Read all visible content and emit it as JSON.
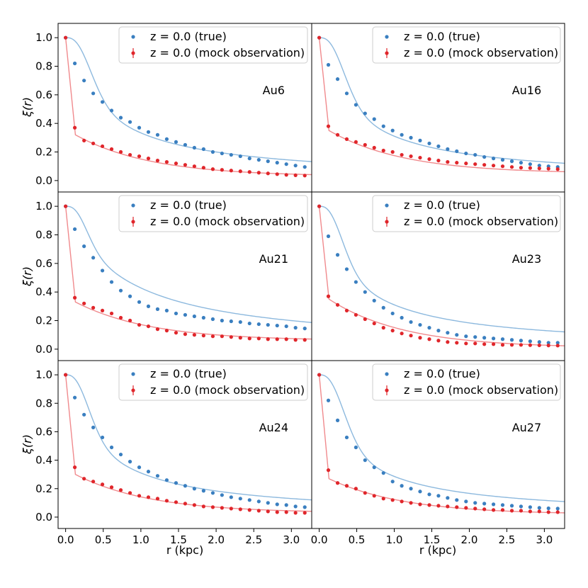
{
  "chart_data": {
    "type": "scatter",
    "layout": "3x2 grid, shared axes",
    "xlabel": "r (kpc)",
    "ylabel": "ξ(r)",
    "xlim": [
      -0.1,
      3.27
    ],
    "ylim": [
      -0.08,
      1.1
    ],
    "xticks": [
      0.0,
      0.5,
      1.0,
      1.5,
      2.0,
      2.5,
      3.0
    ],
    "xtick_labels": [
      "0.0",
      "0.5",
      "1.0",
      "1.5",
      "2.0",
      "2.5",
      "3.0"
    ],
    "yticks": [
      0.0,
      0.2,
      0.4,
      0.6,
      0.8,
      1.0
    ],
    "ytick_labels": [
      "0.0",
      "0.2",
      "0.4",
      "0.6",
      "0.8",
      "1.0"
    ],
    "legend_position": "top-right",
    "legend": [
      {
        "label": "z = 0.0 (true)",
        "color": "#3a7fc0",
        "marker": "dot"
      },
      {
        "label": "z = 0.0 (mock observation)",
        "color": "#e0262b",
        "marker": "dot-errorbar"
      }
    ],
    "colors": {
      "true_points": "#3a7fc0",
      "true_fit": "#8db9de",
      "mock_points": "#e0262b",
      "mock_fit": "#f08a8d"
    },
    "x": [
      0.0,
      0.122,
      0.245,
      0.367,
      0.489,
      0.611,
      0.733,
      0.856,
      0.978,
      1.1,
      1.222,
      1.344,
      1.467,
      1.589,
      1.711,
      1.833,
      1.956,
      2.078,
      2.2,
      2.322,
      2.444,
      2.567,
      2.689,
      2.811,
      2.933,
      3.055,
      3.178
    ],
    "panels": [
      {
        "name": "Au6",
        "true_fit": {
          "s": 0.25,
          "a": 0.5
        },
        "mock_fit": {
          "r0": 0.13,
          "v0": 0.32,
          "tail": 0.03
        },
        "true": [
          1.0,
          0.82,
          0.7,
          0.61,
          0.55,
          0.49,
          0.44,
          0.41,
          0.37,
          0.34,
          0.32,
          0.29,
          0.27,
          0.25,
          0.23,
          0.22,
          0.2,
          0.19,
          0.18,
          0.17,
          0.155,
          0.145,
          0.135,
          0.125,
          0.115,
          0.105,
          0.095
        ],
        "mock": [
          1.0,
          0.37,
          0.28,
          0.26,
          0.24,
          0.22,
          0.2,
          0.18,
          0.17,
          0.155,
          0.14,
          0.13,
          0.12,
          0.11,
          0.1,
          0.09,
          0.08,
          0.075,
          0.07,
          0.065,
          0.06,
          0.055,
          0.05,
          0.045,
          0.04,
          0.037,
          0.035
        ]
      },
      {
        "name": "Au16",
        "true_fit": {
          "s": 0.25,
          "a": 0.45
        },
        "mock_fit": {
          "r0": 0.13,
          "v0": 0.35,
          "tail": 0.05
        },
        "true": [
          1.0,
          0.81,
          0.71,
          0.61,
          0.53,
          0.47,
          0.43,
          0.38,
          0.35,
          0.32,
          0.3,
          0.28,
          0.26,
          0.24,
          0.22,
          0.205,
          0.19,
          0.18,
          0.165,
          0.155,
          0.145,
          0.135,
          0.125,
          0.115,
          0.105,
          0.1,
          0.095
        ],
        "mock": [
          1.0,
          0.38,
          0.32,
          0.29,
          0.27,
          0.25,
          0.23,
          0.21,
          0.2,
          0.18,
          0.17,
          0.16,
          0.15,
          0.14,
          0.13,
          0.125,
          0.12,
          0.115,
          0.11,
          0.105,
          0.1,
          0.095,
          0.09,
          0.088,
          0.085,
          0.083,
          0.08
        ]
      },
      {
        "name": "Au21",
        "true_fit": {
          "s": 0.2,
          "a": 0.75
        },
        "mock_fit": {
          "r0": 0.13,
          "v0": 0.33,
          "tail": 0.06
        },
        "true": [
          1.0,
          0.84,
          0.72,
          0.64,
          0.55,
          0.47,
          0.41,
          0.37,
          0.33,
          0.3,
          0.28,
          0.27,
          0.25,
          0.24,
          0.23,
          0.22,
          0.21,
          0.2,
          0.195,
          0.19,
          0.18,
          0.175,
          0.17,
          0.165,
          0.16,
          0.15,
          0.145
        ],
        "mock": [
          1.0,
          0.36,
          0.32,
          0.29,
          0.27,
          0.25,
          0.22,
          0.2,
          0.17,
          0.16,
          0.14,
          0.13,
          0.115,
          0.105,
          0.1,
          0.095,
          0.09,
          0.09,
          0.085,
          0.08,
          0.075,
          0.075,
          0.07,
          0.07,
          0.07,
          0.065,
          0.065
        ]
      },
      {
        "name": "Au23",
        "true_fit": {
          "s": 0.23,
          "a": 0.45
        },
        "mock_fit": {
          "r0": 0.13,
          "v0": 0.35,
          "tail": 0.01
        },
        "true": [
          1.0,
          0.79,
          0.66,
          0.56,
          0.47,
          0.4,
          0.34,
          0.29,
          0.25,
          0.22,
          0.19,
          0.17,
          0.15,
          0.13,
          0.115,
          0.1,
          0.09,
          0.085,
          0.08,
          0.075,
          0.07,
          0.065,
          0.06,
          0.055,
          0.05,
          0.045,
          0.045
        ],
        "mock": [
          1.0,
          0.37,
          0.31,
          0.27,
          0.24,
          0.21,
          0.18,
          0.15,
          0.13,
          0.11,
          0.095,
          0.08,
          0.07,
          0.06,
          0.05,
          0.045,
          0.04,
          0.04,
          0.035,
          0.035,
          0.03,
          0.03,
          0.03,
          0.028,
          0.027,
          0.026,
          0.025
        ]
      },
      {
        "name": "Au24",
        "true_fit": {
          "s": 0.23,
          "a": 0.45
        },
        "mock_fit": {
          "r0": 0.13,
          "v0": 0.3,
          "tail": 0.03
        },
        "true": [
          1.0,
          0.84,
          0.72,
          0.63,
          0.56,
          0.49,
          0.44,
          0.39,
          0.35,
          0.32,
          0.29,
          0.26,
          0.24,
          0.22,
          0.2,
          0.185,
          0.17,
          0.155,
          0.14,
          0.13,
          0.12,
          0.11,
          0.1,
          0.09,
          0.085,
          0.075,
          0.07
        ],
        "mock": [
          1.0,
          0.35,
          0.27,
          0.25,
          0.23,
          0.21,
          0.19,
          0.17,
          0.15,
          0.14,
          0.13,
          0.115,
          0.105,
          0.095,
          0.085,
          0.075,
          0.07,
          0.065,
          0.06,
          0.055,
          0.05,
          0.045,
          0.04,
          0.035,
          0.035,
          0.03,
          0.03
        ]
      },
      {
        "name": "Au27",
        "true_fit": {
          "s": 0.25,
          "a": 0.4
        },
        "mock_fit": {
          "r0": 0.13,
          "v0": 0.27,
          "tail": 0.02
        },
        "true": [
          1.0,
          0.82,
          0.68,
          0.56,
          0.49,
          0.4,
          0.35,
          0.31,
          0.25,
          0.22,
          0.2,
          0.18,
          0.16,
          0.15,
          0.135,
          0.12,
          0.11,
          0.1,
          0.095,
          0.09,
          0.085,
          0.08,
          0.075,
          0.07,
          0.065,
          0.062,
          0.06
        ],
        "mock": [
          1.0,
          0.33,
          0.24,
          0.22,
          0.2,
          0.17,
          0.15,
          0.13,
          0.12,
          0.11,
          0.1,
          0.09,
          0.085,
          0.08,
          0.075,
          0.07,
          0.065,
          0.06,
          0.055,
          0.05,
          0.05,
          0.045,
          0.045,
          0.04,
          0.04,
          0.035,
          0.035
        ]
      }
    ]
  }
}
